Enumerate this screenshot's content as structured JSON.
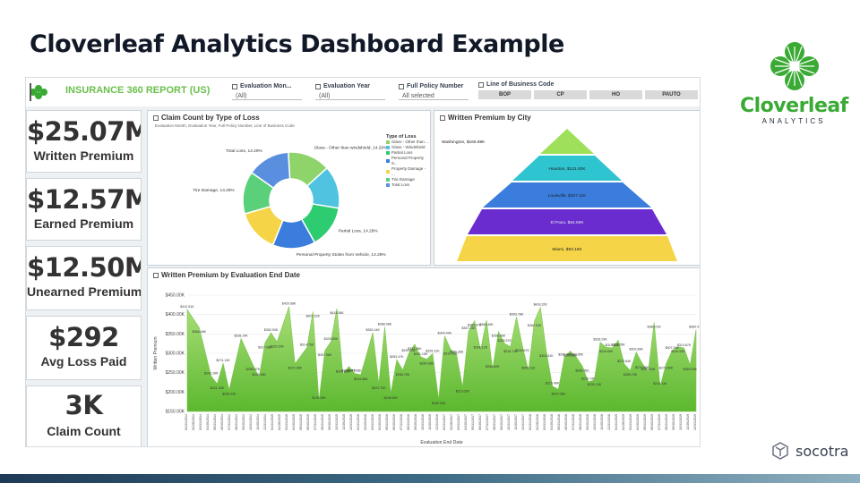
{
  "slide": {
    "title": "Cloverleaf Analytics Dashboard Example",
    "brand": {
      "name": "Cloverleaf",
      "sub": "ANALYTICS",
      "color": "#3aaa35"
    },
    "footer_brand": "socotra"
  },
  "dashboard": {
    "report_title": "INSURANCE 360 REPORT (US)",
    "slicers": [
      {
        "label": "Evaluation Mon...",
        "value": "(All)"
      },
      {
        "label": "Evaluation Year",
        "value": "(All)"
      },
      {
        "label": "Full Policy Number",
        "value": "All selected"
      }
    ],
    "line_of_business": {
      "label": "Line of Business Code",
      "options": [
        "BOP",
        "CP",
        "HO",
        "PAUTO"
      ]
    },
    "kpis": [
      {
        "value": "$25.07M",
        "label": "Written Premium"
      },
      {
        "value": "$12.57M",
        "label": "Earned Premium"
      },
      {
        "value": "$12.50M",
        "label": "Unearned Premium"
      },
      {
        "value": "$292",
        "label": "Avg Loss Paid"
      },
      {
        "value": "3K",
        "label": "Claim Count"
      }
    ],
    "claim_panel": {
      "title": "Claim Count by Type of Loss",
      "subtitle": "Evaluation Month, Evaluation Year, Full Policy Number, Line of Business Code",
      "legend_title": "Type of Loss"
    },
    "city_panel": {
      "title": "Written Premium by City"
    },
    "trend_panel": {
      "title": "Written Premium by Evaluation End Date",
      "xlabel": "Evaluation End Date",
      "ylabel": "Written Premium"
    }
  },
  "chart_data": [
    {
      "type": "pie",
      "title": "Claim Count by Type of Loss",
      "series": [
        {
          "name": "Glass - Other than windshield",
          "legend": "Glass - Other than ...",
          "label": "Glass - Other than windshield, 14.29%",
          "value": 14.29,
          "color": "#8fd46a"
        },
        {
          "name": "Glass - Windshield",
          "legend": "Glass - Windshield",
          "label": "",
          "value": 14.29,
          "color": "#4fc3e0"
        },
        {
          "name": "Partial Loss",
          "legend": "Partial Loss",
          "label": "Partial Loss, 14.29%",
          "value": 14.29,
          "color": "#2ecc71"
        },
        {
          "name": "Personal Property Stolen from Vehicle",
          "legend": "Personal Property S...",
          "label": "Personal Property Stolen from Vehicle, 14.29%",
          "value": 14.29,
          "color": "#3b7ddd"
        },
        {
          "name": "Property Damage",
          "legend": "Property Damage - ...",
          "label": "",
          "value": 14.29,
          "color": "#f5d547"
        },
        {
          "name": "Tire Damage",
          "legend": "Tire Damage",
          "label": "Tire Damage, 14.29%",
          "value": 14.29,
          "color": "#5ad07a"
        },
        {
          "name": "Total Loss",
          "legend": "Total Loss",
          "label": "Total Loss, 14.29%",
          "value": 14.29,
          "color": "#5a8fe0"
        }
      ]
    },
    {
      "type": "bar",
      "orientation": "funnel",
      "title": "Written Premium by City",
      "categories": [
        "Washington",
        "Houston",
        "Louisville",
        "El Paso",
        "Miami"
      ],
      "labels": [
        "Washington, $165.89K",
        "Houston, $121.93K",
        "Louisville, $107.11K",
        "El Paso, $94.69K",
        "Miami, $93.16K"
      ],
      "values": [
        165.89,
        121.93,
        107.11,
        94.69,
        93.16
      ],
      "colors": [
        "#9ee05a",
        "#2ec4d0",
        "#3b7ddd",
        "#6a2ccf",
        "#f5d547"
      ]
    },
    {
      "type": "area",
      "title": "Written Premium by Evaluation End Date",
      "xlabel": "Evaluation End Date",
      "ylabel": "Written Premium",
      "ylim": [
        150,
        450
      ],
      "yticks": [
        "$150.00K",
        "$200.00K",
        "$250.00K",
        "$300.00K",
        "$350.00K",
        "$400.00K",
        "$450.00K"
      ],
      "x_range": [
        "01/31/2014",
        "12/31/2019"
      ],
      "x_tick_count": 72,
      "x_tick_format": "MM/DD/YYYY",
      "values": [
        {
          "x": 0,
          "y": 412.91,
          "label": "$412.91K"
        },
        {
          "x": 2,
          "y": 366.48,
          "label": "$366.48K"
        },
        {
          "x": 4,
          "y": 241.16,
          "label": "$241.16K"
        },
        {
          "x": 5,
          "y": 221.39,
          "label": "$221.39K"
        },
        {
          "x": 6,
          "y": 274.13,
          "label": "$274.13K"
        },
        {
          "x": 7,
          "y": 206.23,
          "label": "$206.23K"
        },
        {
          "x": 9,
          "y": 338.14,
          "label": "$338.14K"
        },
        {
          "x": 11,
          "y": 269.57,
          "label": "$269.57K"
        },
        {
          "x": 12,
          "y": 238.08,
          "label": "$238.08K"
        },
        {
          "x": 13,
          "y": 327.08,
          "label": "$327.08K"
        },
        {
          "x": 14,
          "y": 352.93,
          "label": "$352.93K"
        },
        {
          "x": 15,
          "y": 329.29,
          "label": "$329.29K"
        },
        {
          "x": 17,
          "y": 420.58,
          "label": "$420.58K"
        },
        {
          "x": 18,
          "y": 272.95,
          "label": "$272.95K"
        },
        {
          "x": 20,
          "y": 314.76,
          "label": "$314.76K"
        },
        {
          "x": 21,
          "y": 407.52,
          "label": "$407.52K"
        },
        {
          "x": 22,
          "y": 178.25,
          "label": "$178.25K"
        },
        {
          "x": 23,
          "y": 307.06,
          "label": "$307.06K"
        },
        {
          "x": 24,
          "y": 329.89,
          "label": "$329.89K"
        },
        {
          "x": 25,
          "y": 415.58,
          "label": "$415.58K"
        },
        {
          "x": 26,
          "y": 245.81,
          "label": "$245.81K"
        },
        {
          "x": 27,
          "y": 266.07,
          "label": "$266.07K"
        },
        {
          "x": 28,
          "y": 247.66,
          "label": "$247.66K"
        },
        {
          "x": 29,
          "y": 244.88,
          "label": "$244.88K"
        },
        {
          "x": 31,
          "y": 353.14,
          "label": "$353.14K"
        },
        {
          "x": 32,
          "y": 221.7,
          "label": "$221.70K"
        },
        {
          "x": 33,
          "y": 368.08,
          "label": "$368.08K"
        },
        {
          "x": 34,
          "y": 196.62,
          "label": "$196.62K"
        },
        {
          "x": 35,
          "y": 283.47,
          "label": "$283.47K"
        },
        {
          "x": 36,
          "y": 256.7,
          "label": "$256.70K"
        },
        {
          "x": 37,
          "y": 299.63,
          "label": "$299.63K"
        },
        {
          "x": 38,
          "y": 323.46,
          "label": "$323.46K"
        },
        {
          "x": 39,
          "y": 291.15,
          "label": "$291.15K"
        },
        {
          "x": 40,
          "y": 284.58,
          "label": "$284.58K"
        },
        {
          "x": 41,
          "y": 299.31,
          "label": "$299.31K"
        },
        {
          "x": 42,
          "y": 182.05,
          "label": "$182.05K"
        },
        {
          "x": 43,
          "y": 344.49,
          "label": "$344.49K"
        },
        {
          "x": 44,
          "y": 310.42,
          "label": "$310.42K"
        },
        {
          "x": 45,
          "y": 296.26,
          "label": "$296.26K"
        },
        {
          "x": 46,
          "y": 213.02,
          "label": "$213.02K"
        },
        {
          "x": 47,
          "y": 357.15,
          "label": "$357.15K"
        },
        {
          "x": 48,
          "y": 383.87,
          "label": "$383.87K"
        },
        {
          "x": 49,
          "y": 308.12,
          "label": "$308.12K"
        },
        {
          "x": 50,
          "y": 385.45,
          "label": "$385.45K"
        },
        {
          "x": 51,
          "y": 258.82,
          "label": "$258.82K"
        },
        {
          "x": 52,
          "y": 356.06,
          "label": "$356.06K"
        },
        {
          "x": 53,
          "y": 325.57,
          "label": "$325.57K"
        },
        {
          "x": 54,
          "y": 316.71,
          "label": "$316.71K"
        },
        {
          "x": 55,
          "y": 393.78,
          "label": "$393.78K"
        },
        {
          "x": 56,
          "y": 318.67,
          "label": "$318.67K"
        },
        {
          "x": 57,
          "y": 255.11,
          "label": "$255.11K"
        },
        {
          "x": 58,
          "y": 382.92,
          "label": "$382.92K"
        },
        {
          "x": 59,
          "y": 418.32,
          "label": "$418.32K"
        },
        {
          "x": 60,
          "y": 304.51,
          "label": "$304.51K"
        },
        {
          "x": 61,
          "y": 215.46,
          "label": "$215.46K"
        },
        {
          "x": 62,
          "y": 207.08,
          "label": "$207.08K"
        },
        {
          "x": 63,
          "y": 290.0,
          "label": "$290.0K"
        },
        {
          "x": 64,
          "y": 305.66,
          "label": "$305.66K"
        },
        {
          "x": 65,
          "y": 289.95,
          "label": "$289.95K"
        },
        {
          "x": 66,
          "y": 266.96,
          "label": "$266.96K"
        },
        {
          "x": 67,
          "y": 226.74,
          "label": "$226.74K"
        },
        {
          "x": 68,
          "y": 231.13,
          "label": "$231.13K"
        },
        {
          "x": 69,
          "y": 328.29,
          "label": "$328.29K"
        },
        {
          "x": 70,
          "y": 315.69,
          "label": "$315.69K"
        },
        {
          "x": 71,
          "y": 314.02,
          "label": "$314.02K"
        },
        {
          "x": 72,
          "y": 333.55,
          "label": "$333.55K"
        },
        {
          "x": 73,
          "y": 272.84,
          "label": "$272.84K"
        },
        {
          "x": 74,
          "y": 255.73,
          "label": "$255.73K"
        },
        {
          "x": 75,
          "y": 302.89,
          "label": "$302.89K"
        },
        {
          "x": 76,
          "y": 274.46,
          "label": "$274.46K"
        },
        {
          "x": 77,
          "y": 251.93,
          "label": "$251.93K"
        },
        {
          "x": 78,
          "y": 380.01,
          "label": "$380.01K"
        },
        {
          "x": 79,
          "y": 215.13,
          "label": "$215.13K"
        },
        {
          "x": 80,
          "y": 273.59,
          "label": "$273.59K"
        },
        {
          "x": 81,
          "y": 307.09,
          "label": "$307.09K"
        },
        {
          "x": 82,
          "y": 316.53,
          "label": "$316.53K"
        },
        {
          "x": 83,
          "y": 313.67,
          "label": "$313.67K"
        },
        {
          "x": 84,
          "y": 269.99,
          "label": "$269.99K"
        },
        {
          "x": 85,
          "y": 360.97,
          "label": "$360.97K"
        }
      ],
      "grid": true
    }
  ]
}
